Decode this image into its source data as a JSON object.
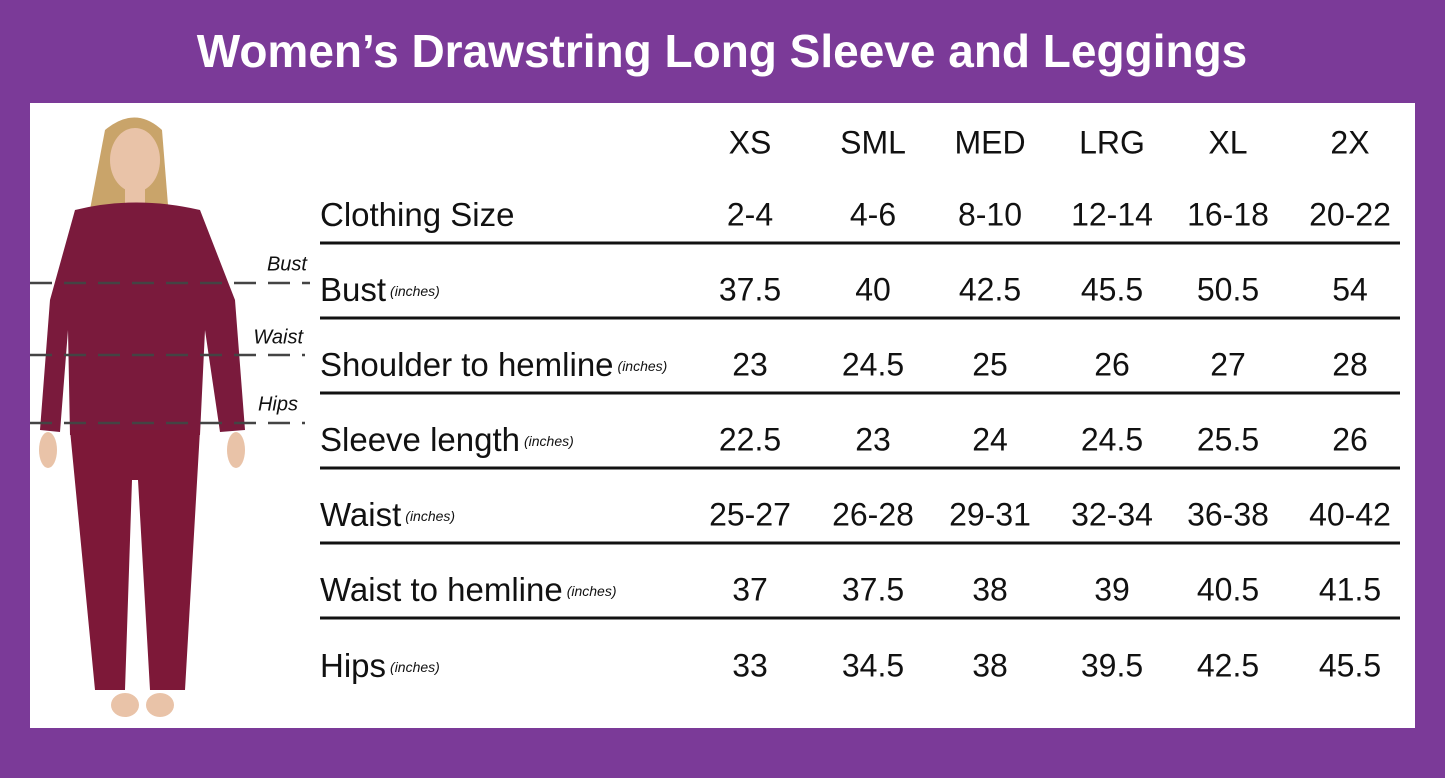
{
  "title": "Women’s Drawstring Long Sleeve and Leggings",
  "figure": {
    "labels": [
      "Bust",
      "Waist",
      "Hips"
    ]
  },
  "table": {
    "sizes": [
      "XS",
      "SML",
      "MED",
      "LRG",
      "XL",
      "2X"
    ],
    "rows": [
      {
        "label": "Clothing Size",
        "values": [
          "2-4",
          "4-6",
          "8-10",
          "12-14",
          "16-18",
          "20-22"
        ]
      },
      {
        "label": "Bust",
        "unit": "(inches)",
        "values": [
          "37.5",
          "40",
          "42.5",
          "45.5",
          "50.5",
          "54"
        ]
      },
      {
        "label": "Shoulder to hemline",
        "unit": "(inches)",
        "values": [
          "23",
          "24.5",
          "25",
          "26",
          "27",
          "28"
        ]
      },
      {
        "label": "Sleeve length",
        "unit": "(inches)",
        "values": [
          "22.5",
          "23",
          "24",
          "24.5",
          "25.5",
          "26"
        ]
      },
      {
        "label": "Waist",
        "unit": "(inches)",
        "values": [
          "25-27",
          "26-28",
          "29-31",
          "32-34",
          "36-38",
          "40-42"
        ]
      },
      {
        "label": "Waist to hemline",
        "unit": "(inches)",
        "values": [
          "37",
          "37.5",
          "38",
          "39",
          "40.5",
          "41.5"
        ]
      },
      {
        "label": "Hips",
        "unit": "(inches)",
        "values": [
          "33",
          "34.5",
          "38",
          "39.5",
          "42.5",
          "45.5"
        ]
      }
    ]
  }
}
